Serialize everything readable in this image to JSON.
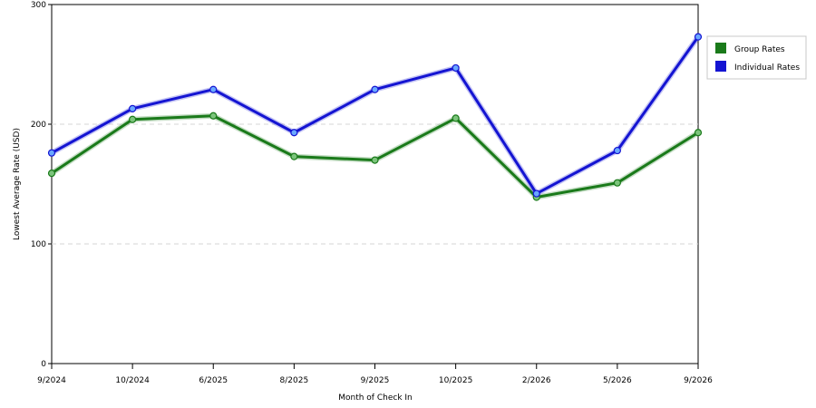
{
  "chart_data": {
    "type": "line",
    "title": "",
    "xlabel": "Month of Check In",
    "ylabel": "Lowest Average Rate (USD)",
    "categories": [
      "9/2024",
      "10/2024",
      "6/2025",
      "8/2025",
      "9/2025",
      "10/2025",
      "2/2026",
      "5/2026",
      "9/2026"
    ],
    "ylim": [
      0,
      300
    ],
    "yticks": [
      0,
      100,
      200,
      300
    ],
    "grid": true,
    "legend_position": "top-right",
    "series": [
      {
        "name": "Group Rates",
        "color": "#1a7a1a",
        "values": [
          159,
          204,
          207,
          173,
          170,
          205,
          139,
          151,
          193
        ]
      },
      {
        "name": "Individual Rates",
        "color": "#1414d2",
        "values": [
          176,
          213,
          229,
          193,
          229,
          247,
          142,
          178,
          273
        ]
      }
    ]
  }
}
